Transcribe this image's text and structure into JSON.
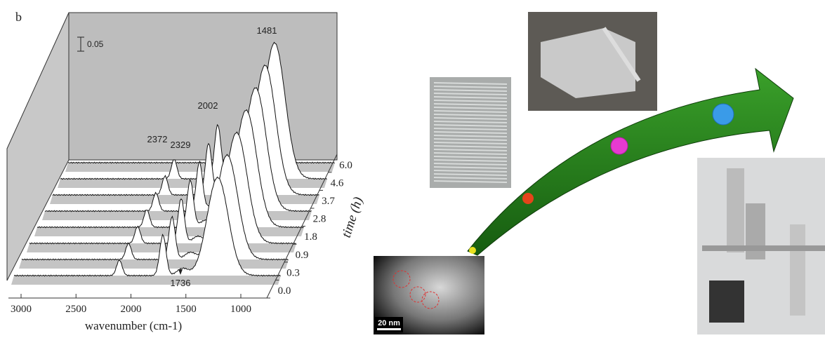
{
  "panel_label": "b",
  "scale_bar": "0.05",
  "peak_labels": [
    "2372",
    "2329",
    "2002",
    "1481",
    "1736"
  ],
  "x_axis": {
    "title": "wavenumber (cm-1)",
    "ticks": [
      3000,
      2500,
      2000,
      1500,
      1000
    ]
  },
  "time_axis": {
    "title": "time (h)",
    "ticks": [
      "0.0",
      "0.3",
      "0.9",
      "1.8",
      "2.8",
      "3.7",
      "4.6",
      "6.0"
    ]
  },
  "tem_scale": "20 nm"
}
